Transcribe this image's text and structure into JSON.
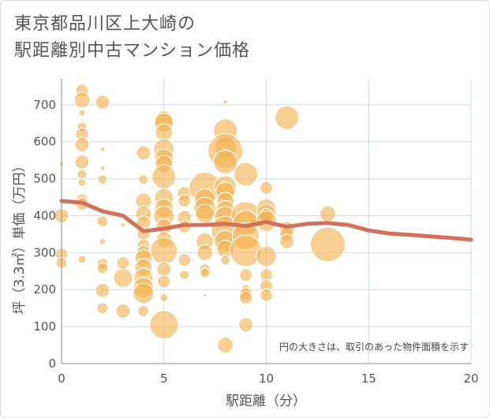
{
  "title": "東京都品川区上大崎の\n駅距離別中古マンション価格",
  "chart_data": {
    "type": "scatter",
    "xlabel": "駅距離（分）",
    "ylabel": "坪（3.3㎡）単価（万円）",
    "xlim": [
      0,
      20
    ],
    "ylim": [
      0,
      770
    ],
    "xticks": [
      0,
      5,
      10,
      15,
      20
    ],
    "yticks": [
      0,
      100,
      200,
      300,
      400,
      500,
      600,
      700
    ],
    "grid": true,
    "note": "円の大きさは、取引のあった物件面積を示す",
    "colors": {
      "bubble": "#f3b24f",
      "bubble_stroke": "#ffffff",
      "line": "#d4705a",
      "grid": "#cfdbe6"
    },
    "bubbles": [
      {
        "x": 0,
        "y": 540,
        "s": 3
      },
      {
        "x": 0,
        "y": 400,
        "s": 9
      },
      {
        "x": 0,
        "y": 295,
        "s": 8
      },
      {
        "x": 0,
        "y": 272,
        "s": 7
      },
      {
        "x": 1,
        "y": 738,
        "s": 8
      },
      {
        "x": 1,
        "y": 713,
        "s": 10
      },
      {
        "x": 1,
        "y": 678,
        "s": 4
      },
      {
        "x": 1,
        "y": 640,
        "s": 6
      },
      {
        "x": 1,
        "y": 620,
        "s": 8
      },
      {
        "x": 1,
        "y": 592,
        "s": 9
      },
      {
        "x": 1,
        "y": 545,
        "s": 9
      },
      {
        "x": 1,
        "y": 512,
        "s": 6
      },
      {
        "x": 1,
        "y": 490,
        "s": 5
      },
      {
        "x": 1,
        "y": 445,
        "s": 7
      },
      {
        "x": 1,
        "y": 432,
        "s": 8
      },
      {
        "x": 1,
        "y": 282,
        "s": 5
      },
      {
        "x": 2,
        "y": 707,
        "s": 9
      },
      {
        "x": 2,
        "y": 580,
        "s": 3
      },
      {
        "x": 2,
        "y": 528,
        "s": 3
      },
      {
        "x": 2,
        "y": 498,
        "s": 6
      },
      {
        "x": 2,
        "y": 385,
        "s": 7
      },
      {
        "x": 2,
        "y": 330,
        "s": 4
      },
      {
        "x": 2,
        "y": 270,
        "s": 7
      },
      {
        "x": 2,
        "y": 258,
        "s": 7
      },
      {
        "x": 2,
        "y": 198,
        "s": 9
      },
      {
        "x": 2,
        "y": 150,
        "s": 7
      },
      {
        "x": 3,
        "y": 232,
        "s": 12
      },
      {
        "x": 3,
        "y": 272,
        "s": 8
      },
      {
        "x": 3,
        "y": 142,
        "s": 9
      },
      {
        "x": 3,
        "y": 375,
        "s": 3
      },
      {
        "x": 4,
        "y": 570,
        "s": 9
      },
      {
        "x": 4,
        "y": 498,
        "s": 6
      },
      {
        "x": 4,
        "y": 440,
        "s": 10
      },
      {
        "x": 4,
        "y": 405,
        "s": 10
      },
      {
        "x": 4,
        "y": 380,
        "s": 9
      },
      {
        "x": 4,
        "y": 350,
        "s": 8
      },
      {
        "x": 4,
        "y": 320,
        "s": 8
      },
      {
        "x": 4,
        "y": 300,
        "s": 9
      },
      {
        "x": 4,
        "y": 285,
        "s": 11
      },
      {
        "x": 4,
        "y": 260,
        "s": 11
      },
      {
        "x": 4,
        "y": 232,
        "s": 12
      },
      {
        "x": 4,
        "y": 205,
        "s": 13
      },
      {
        "x": 4,
        "y": 190,
        "s": 13
      },
      {
        "x": 4,
        "y": 142,
        "s": 7
      },
      {
        "x": 5,
        "y": 660,
        "s": 11
      },
      {
        "x": 5,
        "y": 652,
        "s": 12
      },
      {
        "x": 5,
        "y": 625,
        "s": 11
      },
      {
        "x": 5,
        "y": 580,
        "s": 13
      },
      {
        "x": 5,
        "y": 555,
        "s": 12
      },
      {
        "x": 5,
        "y": 540,
        "s": 11
      },
      {
        "x": 5,
        "y": 505,
        "s": 15
      },
      {
        "x": 5,
        "y": 448,
        "s": 12
      },
      {
        "x": 5,
        "y": 420,
        "s": 12
      },
      {
        "x": 5,
        "y": 398,
        "s": 13
      },
      {
        "x": 5,
        "y": 370,
        "s": 10
      },
      {
        "x": 5,
        "y": 335,
        "s": 10
      },
      {
        "x": 5,
        "y": 305,
        "s": 17
      },
      {
        "x": 5,
        "y": 255,
        "s": 9
      },
      {
        "x": 5,
        "y": 222,
        "s": 8
      },
      {
        "x": 5,
        "y": 178,
        "s": 5
      },
      {
        "x": 5,
        "y": 105,
        "s": 18
      },
      {
        "x": 6,
        "y": 460,
        "s": 9
      },
      {
        "x": 6,
        "y": 440,
        "s": 8
      },
      {
        "x": 6,
        "y": 395,
        "s": 9
      },
      {
        "x": 6,
        "y": 370,
        "s": 8
      },
      {
        "x": 6,
        "y": 280,
        "s": 8
      },
      {
        "x": 6,
        "y": 240,
        "s": 6
      },
      {
        "x": 7,
        "y": 475,
        "s": 20
      },
      {
        "x": 7,
        "y": 445,
        "s": 13
      },
      {
        "x": 7,
        "y": 420,
        "s": 14
      },
      {
        "x": 7,
        "y": 405,
        "s": 12
      },
      {
        "x": 7,
        "y": 330,
        "s": 11
      },
      {
        "x": 7,
        "y": 300,
        "s": 10
      },
      {
        "x": 7,
        "y": 255,
        "s": 7
      },
      {
        "x": 7,
        "y": 245,
        "s": 6
      },
      {
        "x": 7,
        "y": 185,
        "s": 2
      },
      {
        "x": 8,
        "y": 707,
        "s": 3
      },
      {
        "x": 8,
        "y": 630,
        "s": 15
      },
      {
        "x": 8,
        "y": 585,
        "s": 14
      },
      {
        "x": 8,
        "y": 575,
        "s": 22
      },
      {
        "x": 8,
        "y": 545,
        "s": 15
      },
      {
        "x": 8,
        "y": 478,
        "s": 14
      },
      {
        "x": 8,
        "y": 465,
        "s": 12
      },
      {
        "x": 8,
        "y": 440,
        "s": 11
      },
      {
        "x": 8,
        "y": 415,
        "s": 12
      },
      {
        "x": 8,
        "y": 395,
        "s": 14
      },
      {
        "x": 8,
        "y": 360,
        "s": 18
      },
      {
        "x": 8,
        "y": 330,
        "s": 14
      },
      {
        "x": 8,
        "y": 310,
        "s": 11
      },
      {
        "x": 8,
        "y": 280,
        "s": 6
      },
      {
        "x": 8,
        "y": 50,
        "s": 10
      },
      {
        "x": 9,
        "y": 512,
        "s": 15
      },
      {
        "x": 9,
        "y": 400,
        "s": 18
      },
      {
        "x": 9,
        "y": 380,
        "s": 16
      },
      {
        "x": 9,
        "y": 345,
        "s": 17
      },
      {
        "x": 9,
        "y": 305,
        "s": 20
      },
      {
        "x": 9,
        "y": 240,
        "s": 8
      },
      {
        "x": 9,
        "y": 200,
        "s": 6
      },
      {
        "x": 9,
        "y": 188,
        "s": 8
      },
      {
        "x": 9,
        "y": 178,
        "s": 8
      },
      {
        "x": 9,
        "y": 105,
        "s": 9
      },
      {
        "x": 10,
        "y": 475,
        "s": 8
      },
      {
        "x": 10,
        "y": 420,
        "s": 12
      },
      {
        "x": 10,
        "y": 405,
        "s": 12
      },
      {
        "x": 10,
        "y": 400,
        "s": 9
      },
      {
        "x": 10,
        "y": 385,
        "s": 13
      },
      {
        "x": 10,
        "y": 290,
        "s": 13
      },
      {
        "x": 10,
        "y": 240,
        "s": 8
      },
      {
        "x": 10,
        "y": 210,
        "s": 8
      },
      {
        "x": 10,
        "y": 185,
        "s": 8
      },
      {
        "x": 11,
        "y": 665,
        "s": 15
      },
      {
        "x": 11,
        "y": 365,
        "s": 9
      },
      {
        "x": 11,
        "y": 350,
        "s": 9
      },
      {
        "x": 11,
        "y": 330,
        "s": 9
      },
      {
        "x": 13,
        "y": 405,
        "s": 10
      },
      {
        "x": 13,
        "y": 322,
        "s": 22
      }
    ],
    "series": [
      {
        "type": "line",
        "x": [
          0,
          1,
          2,
          3,
          4,
          5,
          6,
          7,
          8,
          9,
          10,
          11,
          12,
          13,
          14,
          15,
          16,
          17,
          18,
          19,
          20
        ],
        "values": [
          440,
          435,
          412,
          400,
          358,
          365,
          375,
          375,
          378,
          372,
          383,
          370,
          378,
          380,
          375,
          360,
          352,
          348,
          344,
          340,
          335
        ]
      }
    ]
  }
}
